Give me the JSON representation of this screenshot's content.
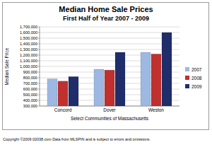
{
  "chart_data": {
    "type": "bar",
    "title": "Median Home Sale Prices",
    "subtitle": "First Half of Year 2007 - 2009",
    "y_label": "Median Sale Price",
    "x_label": "Select Communities of Massachusetts",
    "annotations": [
      "Copyright ©2009 02038.com  Data from MLSPIN and is subject to errors and omissions."
    ],
    "categories": [
      "Concord",
      "Dover",
      "Weston"
    ],
    "series": [
      {
        "name": "2007",
        "color": "#9db8e2",
        "values": [
          780000,
          950000,
          1250000
        ]
      },
      {
        "name": "2008",
        "color": "#c0302e",
        "values": [
          740000,
          935000,
          1220000
        ]
      },
      {
        "name": "2009",
        "color": "#1f2d6b",
        "values": [
          820000,
          1250000,
          1600000
        ]
      }
    ],
    "ylim": [
      300000,
      1700000
    ],
    "yticks": [
      {
        "value": 300000,
        "label": "300,000"
      },
      {
        "value": 400000,
        "label": "400,000"
      },
      {
        "value": 500000,
        "label": "500,000"
      },
      {
        "value": 600000,
        "label": "600,000"
      },
      {
        "value": 700000,
        "label": "700,000"
      },
      {
        "value": 800000,
        "label": "800,000"
      },
      {
        "value": 900000,
        "label": "900,000"
      },
      {
        "value": 1000000,
        "label": "1,000,000"
      },
      {
        "value": 1100000,
        "label": "1,100,000"
      },
      {
        "value": 1200000,
        "label": "1,200,000"
      },
      {
        "value": 1300000,
        "label": "1,300,000"
      },
      {
        "value": 1400000,
        "label": "1,400,000"
      },
      {
        "value": 1500000,
        "label": "1,500,000"
      },
      {
        "value": 1600000,
        "label": "1,600,000"
      },
      {
        "value": 1700000,
        "label": "1,700,000"
      }
    ],
    "grid": true,
    "legend": "right"
  }
}
